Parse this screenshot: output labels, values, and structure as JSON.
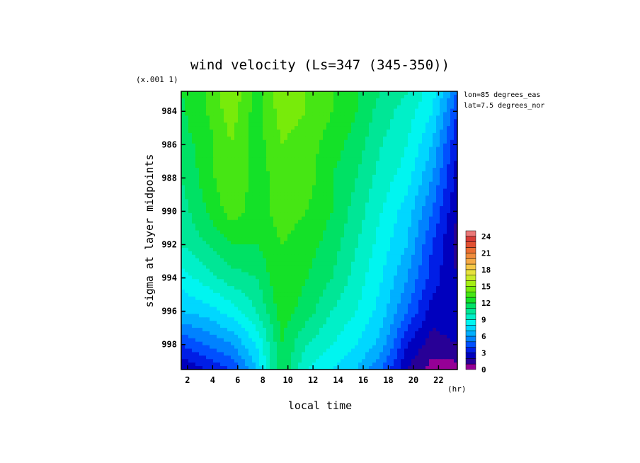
{
  "chart_data": {
    "type": "heatmap",
    "title": "wind velocity (Ls=347 (345-350))",
    "xlabel": "local time",
    "ylabel": "sigma at layer midpoints",
    "x_unit": "(hr)",
    "y_scale_note": "(x.001 1)",
    "annotations": [
      "lon=85 degrees_eas",
      "lat=7.5 degrees_nor"
    ],
    "xlim": [
      1.5,
      23.5
    ],
    "ylim": [
      999.5,
      982.8
    ],
    "x_ticks": [
      "2",
      "4",
      "6",
      "8",
      "10",
      "12",
      "14",
      "16",
      "18",
      "20",
      "22"
    ],
    "y_ticks": [
      "984",
      "986",
      "988",
      "990",
      "992",
      "994",
      "996",
      "998"
    ],
    "colorbar": {
      "min": 0,
      "max": 25,
      "step": 1,
      "ticks": [
        "0",
        "3",
        "6",
        "9",
        "12",
        "15",
        "18",
        "21",
        "24"
      ]
    },
    "x": [
      1.5,
      3.5,
      5.5,
      7.5,
      9.5,
      11.5,
      13.5,
      15.5,
      17.5,
      19.5,
      21.5,
      23.5
    ],
    "y": [
      982.8,
      984,
      986,
      988,
      990,
      992,
      994,
      996,
      998,
      999.5
    ],
    "values": [
      [
        12.0,
        13.0,
        15.0,
        12.5,
        15.0,
        14.0,
        13.0,
        12.0,
        11.0,
        10.0,
        8.5,
        5.0
      ],
      [
        11.8,
        13.0,
        14.5,
        12.5,
        14.5,
        14.0,
        13.0,
        12.0,
        10.5,
        9.5,
        8.0,
        4.0
      ],
      [
        11.5,
        12.5,
        14.0,
        12.5,
        14.0,
        13.5,
        12.5,
        11.5,
        10.0,
        9.0,
        7.0,
        3.0
      ],
      [
        11.0,
        12.5,
        14.0,
        12.5,
        13.5,
        13.5,
        12.0,
        11.0,
        9.5,
        8.5,
        6.0,
        2.5
      ],
      [
        10.5,
        12.0,
        13.5,
        12.5,
        13.5,
        13.0,
        12.0,
        10.5,
        9.0,
        7.5,
        5.0,
        2.0
      ],
      [
        10.0,
        11.0,
        12.0,
        12.0,
        13.0,
        12.5,
        11.5,
        10.0,
        8.5,
        7.0,
        4.0,
        1.5
      ],
      [
        8.5,
        9.5,
        10.5,
        11.0,
        13.0,
        12.0,
        11.0,
        9.5,
        8.0,
        6.0,
        3.5,
        2.0
      ],
      [
        7.0,
        7.5,
        8.5,
        10.0,
        12.5,
        11.5,
        10.0,
        9.0,
        7.5,
        5.0,
        2.5,
        3.0
      ],
      [
        4.0,
        5.0,
        6.0,
        8.0,
        12.0,
        10.0,
        9.0,
        8.0,
        6.5,
        3.0,
        1.5,
        2.0
      ],
      [
        2.0,
        3.0,
        4.0,
        7.0,
        12.0,
        9.0,
        8.0,
        7.0,
        5.0,
        2.0,
        0.5,
        0.5
      ]
    ]
  }
}
